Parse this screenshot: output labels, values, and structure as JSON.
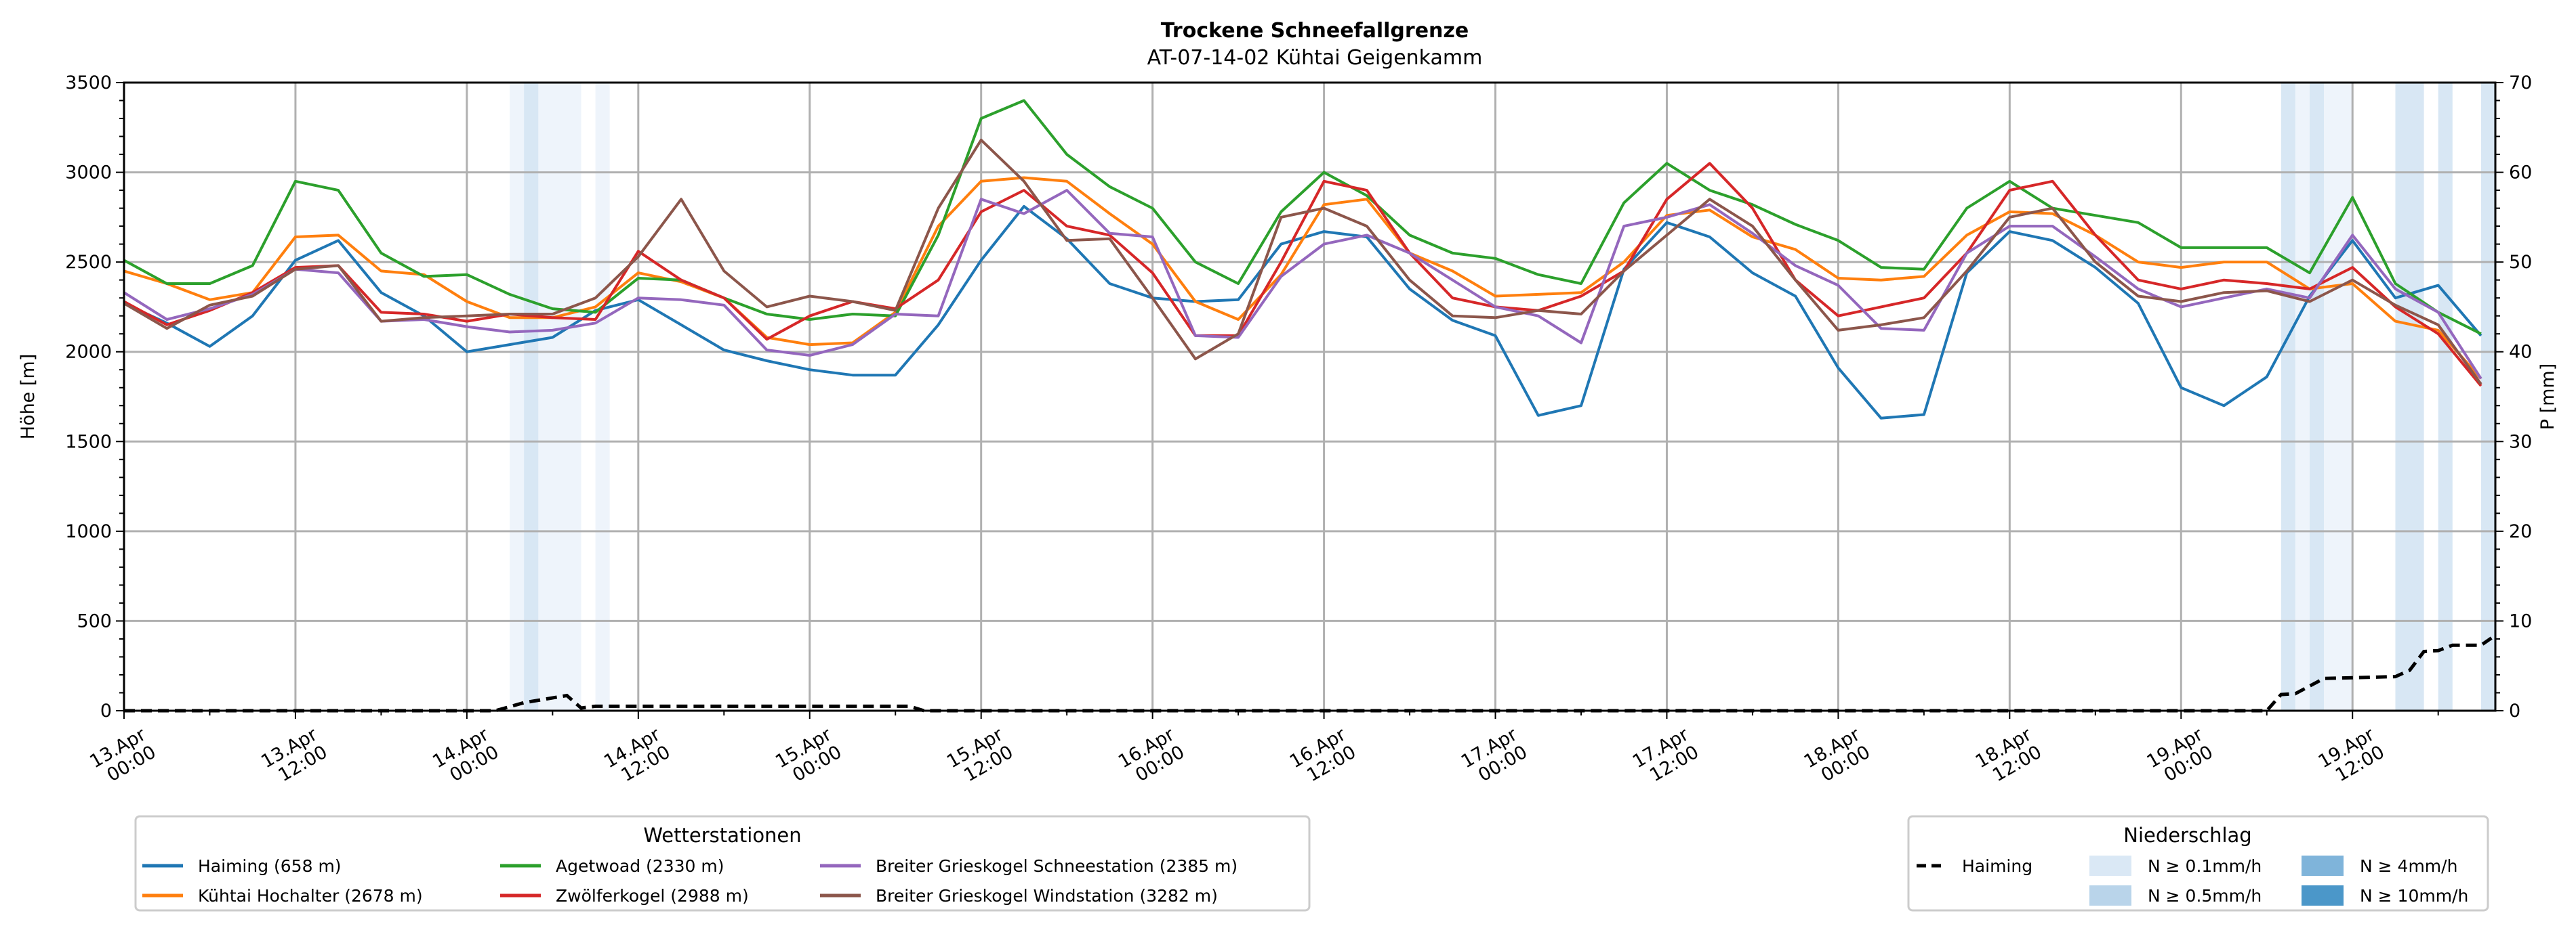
{
  "chart_data": {
    "type": "line",
    "title": "Trockene Schneefallgrenze",
    "subtitle": "AT-07-14-02 Kühtai Geigenkamm",
    "ylabel": "Höhe [m]",
    "y2label": "P [mm]",
    "ylim": [
      0,
      3500
    ],
    "y2lim": [
      0,
      70
    ],
    "yticks": [
      "0",
      "500",
      "1000",
      "1500",
      "2000",
      "2500",
      "3000",
      "3500"
    ],
    "y2ticks": [
      "0",
      "10",
      "20",
      "30",
      "40",
      "50",
      "60",
      "70"
    ],
    "xlim_hours": [
      0,
      166
    ],
    "xticks": [
      {
        "h": 0,
        "l1": "13.Apr",
        "l2": "00:00"
      },
      {
        "h": 12,
        "l1": "13.Apr",
        "l2": "12:00"
      },
      {
        "h": 24,
        "l1": "14.Apr",
        "l2": "00:00"
      },
      {
        "h": 36,
        "l1": "14.Apr",
        "l2": "12:00"
      },
      {
        "h": 48,
        "l1": "15.Apr",
        "l2": "00:00"
      },
      {
        "h": 60,
        "l1": "15.Apr",
        "l2": "12:00"
      },
      {
        "h": 72,
        "l1": "16.Apr",
        "l2": "00:00"
      },
      {
        "h": 84,
        "l1": "16.Apr",
        "l2": "12:00"
      },
      {
        "h": 96,
        "l1": "17.Apr",
        "l2": "00:00"
      },
      {
        "h": 108,
        "l1": "17.Apr",
        "l2": "12:00"
      },
      {
        "h": 120,
        "l1": "18.Apr",
        "l2": "00:00"
      },
      {
        "h": 132,
        "l1": "18.Apr",
        "l2": "12:00"
      },
      {
        "h": 144,
        "l1": "19.Apr",
        "l2": "00:00"
      },
      {
        "h": 156,
        "l1": "19.Apr",
        "l2": "12:00"
      }
    ],
    "x_step_hours": 3,
    "grid": true,
    "series": [
      {
        "name": "Haiming (658 m)",
        "color": "#1f77b4",
        "values": [
          2270,
          2160,
          2030,
          2200,
          2510,
          2620,
          2330,
          2200,
          2000,
          2040,
          2080,
          2230,
          2290,
          2150,
          2010,
          1950,
          1900,
          1870,
          1870,
          2150,
          2510,
          2810,
          2630,
          2380,
          2300,
          2280,
          2290,
          2600,
          2670,
          2640,
          2350,
          2175,
          2090,
          1645,
          1700,
          2460,
          2720,
          2640,
          2440,
          2310,
          1910,
          1630,
          1650,
          2440,
          2670,
          2620,
          2470,
          2270,
          1800,
          1700,
          1860,
          2310,
          2620,
          2300,
          2370,
          2090
        ]
      },
      {
        "name": "Kühtai Hochalter (2678 m)",
        "color": "#ff7f0e",
        "values": [
          2450,
          2380,
          2290,
          2330,
          2640,
          2650,
          2450,
          2430,
          2280,
          2190,
          2190,
          2250,
          2440,
          2390,
          2300,
          2080,
          2040,
          2050,
          2220,
          2700,
          2950,
          2970,
          2950,
          2770,
          2600,
          2280,
          2180,
          2430,
          2820,
          2850,
          2550,
          2450,
          2310,
          2320,
          2330,
          2500,
          2760,
          2790,
          2640,
          2570,
          2410,
          2400,
          2420,
          2650,
          2780,
          2770,
          2650,
          2500,
          2470,
          2500,
          2500,
          2350,
          2380,
          2170,
          2120,
          1850
        ]
      },
      {
        "name": "Agetwoad (2330 m)",
        "color": "#2ca02c",
        "values": [
          2510,
          2380,
          2380,
          2480,
          2950,
          2900,
          2550,
          2420,
          2430,
          2320,
          2240,
          2220,
          2410,
          2400,
          2300,
          2210,
          2180,
          2210,
          2200,
          2650,
          3300,
          3400,
          3100,
          2920,
          2800,
          2500,
          2380,
          2780,
          3000,
          2870,
          2650,
          2550,
          2520,
          2430,
          2380,
          2830,
          3050,
          2900,
          2820,
          2710,
          2620,
          2470,
          2460,
          2800,
          2950,
          2800,
          2760,
          2720,
          2580,
          2580,
          2580,
          2440,
          2860,
          2380,
          2220,
          2100
        ]
      },
      {
        "name": "Zwölferkogel (2988 m)",
        "color": "#d62728",
        "values": [
          2280,
          2150,
          2230,
          2330,
          2470,
          2480,
          2220,
          2210,
          2170,
          2210,
          2190,
          2180,
          2560,
          2400,
          2300,
          2070,
          2200,
          2280,
          2240,
          2400,
          2780,
          2900,
          2700,
          2650,
          2440,
          2090,
          2090,
          2500,
          2950,
          2900,
          2550,
          2300,
          2250,
          2230,
          2310,
          2450,
          2850,
          3050,
          2800,
          2400,
          2200,
          2250,
          2300,
          2550,
          2900,
          2950,
          2650,
          2400,
          2350,
          2400,
          2380,
          2350,
          2470,
          2250,
          2100,
          1810
        ]
      },
      {
        "name": "Breiter Grieskogel Schneestation (2385 m)",
        "color": "#9467bd",
        "values": [
          2330,
          2180,
          2240,
          2320,
          2460,
          2440,
          2170,
          2180,
          2140,
          2110,
          2120,
          2160,
          2300,
          2290,
          2260,
          2010,
          1980,
          2040,
          2210,
          2200,
          2850,
          2770,
          2900,
          2660,
          2640,
          2090,
          2080,
          2420,
          2600,
          2650,
          2550,
          2400,
          2250,
          2200,
          2050,
          2700,
          2750,
          2820,
          2660,
          2480,
          2370,
          2130,
          2120,
          2550,
          2700,
          2700,
          2530,
          2350,
          2250,
          2300,
          2350,
          2300,
          2650,
          2350,
          2220,
          1850
        ]
      },
      {
        "name": "Breiter Grieskogel Windstation (3282 m)",
        "color": "#8c564b",
        "values": [
          2270,
          2130,
          2260,
          2310,
          2460,
          2480,
          2170,
          2190,
          2200,
          2210,
          2210,
          2300,
          2530,
          2850,
          2450,
          2250,
          2310,
          2280,
          2230,
          2800,
          3180,
          2950,
          2620,
          2630,
          2300,
          1960,
          2100,
          2750,
          2800,
          2700,
          2400,
          2200,
          2190,
          2230,
          2210,
          2450,
          2650,
          2850,
          2700,
          2400,
          2120,
          2150,
          2190,
          2450,
          2750,
          2800,
          2500,
          2310,
          2280,
          2330,
          2340,
          2280,
          2400,
          2260,
          2150,
          1820
        ]
      }
    ],
    "precip_series": {
      "name": "Haiming",
      "color": "#000000",
      "axis": "right",
      "points": [
        [
          0,
          0
        ],
        [
          26,
          0
        ],
        [
          28,
          0.9
        ],
        [
          31,
          1.7
        ],
        [
          32,
          0.3
        ],
        [
          33,
          0.5
        ],
        [
          55,
          0.5
        ],
        [
          56,
          0
        ],
        [
          150,
          0
        ],
        [
          151,
          1.8
        ],
        [
          152,
          1.9
        ],
        [
          154,
          3.6
        ],
        [
          159,
          3.8
        ],
        [
          160,
          4.5
        ],
        [
          161,
          6.6
        ],
        [
          162,
          6.7
        ],
        [
          163,
          7.3
        ],
        [
          165,
          7.3
        ],
        [
          166,
          8.4
        ]
      ]
    },
    "precip_bands": [
      {
        "from": 27,
        "to": 32,
        "level": "N ≥ 0.1mm/h"
      },
      {
        "from": 28,
        "to": 29,
        "level": "N ≥ 0.5mm/h"
      },
      {
        "from": 33,
        "to": 34,
        "level": "N ≥ 0.1mm/h"
      },
      {
        "from": 151,
        "to": 152,
        "level": "N ≥ 0.5mm/h"
      },
      {
        "from": 152,
        "to": 153,
        "level": "N ≥ 0.1mm/h"
      },
      {
        "from": 153,
        "to": 154,
        "level": "N ≥ 0.5mm/h"
      },
      {
        "from": 154,
        "to": 156,
        "level": "N ≥ 0.1mm/h"
      },
      {
        "from": 159,
        "to": 161,
        "level": "N ≥ 0.5mm/h"
      },
      {
        "from": 162,
        "to": 163,
        "level": "N ≥ 0.5mm/h"
      },
      {
        "from": 165,
        "to": 166,
        "level": "N ≥ 0.5mm/h"
      },
      {
        "from": 166,
        "to": 167,
        "level": "N ≥ 0.1mm/h"
      }
    ],
    "legend_stations": {
      "title": "Wetterstationen",
      "placement": "bottom-left"
    },
    "legend_precip": {
      "title": "Niederschlag",
      "placement": "bottom-right",
      "line_label": "Haiming",
      "levels": [
        {
          "label": "N ≥ 0.1mm/h",
          "color": "#dae8f5"
        },
        {
          "label": "N ≥ 0.5mm/h",
          "color": "#b9d4ea"
        },
        {
          "label": "N ≥ 4mm/h",
          "color": "#7fb4da"
        },
        {
          "label": "N ≥ 10mm/h",
          "color": "#4b97c9"
        }
      ]
    }
  }
}
